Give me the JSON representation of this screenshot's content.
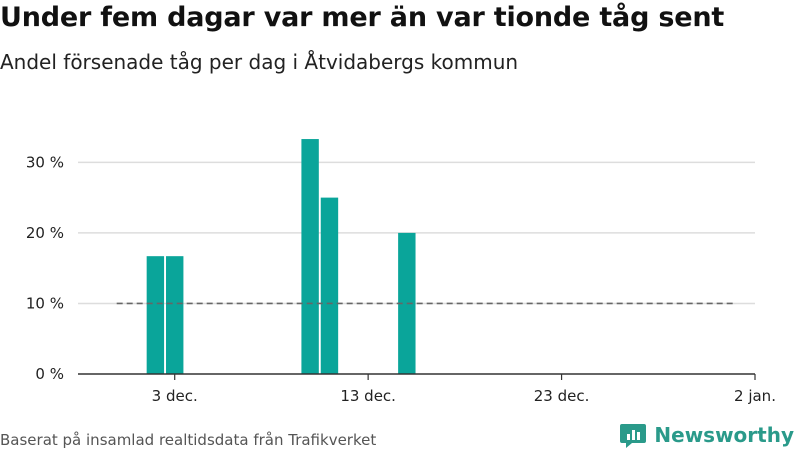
{
  "title": "Under fem dagar var mer än var tionde tåg sent",
  "subtitle": "Andel försenade tåg per dag i Åtvidabergs kommun",
  "source": "Baserat på insamlad realtidsdata från Trafikverket",
  "brand": "Newsworthy",
  "colors": {
    "bar": "#0aa59a",
    "grid": "#dddddd",
    "axis": "#333333",
    "reference": "#666666",
    "brand": "#2a9a8a"
  },
  "chart_data": {
    "type": "bar",
    "x_start": "2023-11-28",
    "x_end": "2024-01-02",
    "ylim": [
      0,
      36
    ],
    "bars": [
      {
        "date": "2023-12-02",
        "value": 16.7
      },
      {
        "date": "2023-12-03",
        "value": 16.7
      },
      {
        "date": "2023-12-10",
        "value": 33.3
      },
      {
        "date": "2023-12-11",
        "value": 25.0
      },
      {
        "date": "2023-12-15",
        "value": 20.0
      }
    ],
    "reference_line": {
      "value": 10,
      "from": "2023-11-30",
      "to": "2024-01-01",
      "style": "dashed"
    },
    "y_ticks": [
      {
        "value": 0,
        "label": "0 %"
      },
      {
        "value": 10,
        "label": "10 %"
      },
      {
        "value": 20,
        "label": "20 %"
      },
      {
        "value": 30,
        "label": "30 %"
      }
    ],
    "x_ticks": [
      {
        "date": "2023-12-03",
        "label": "3 dec."
      },
      {
        "date": "2023-12-13",
        "label": "13 dec."
      },
      {
        "date": "2023-12-23",
        "label": "23 dec."
      },
      {
        "date": "2024-01-02",
        "label": "2 jan."
      }
    ],
    "grid": true,
    "legend": "none"
  }
}
